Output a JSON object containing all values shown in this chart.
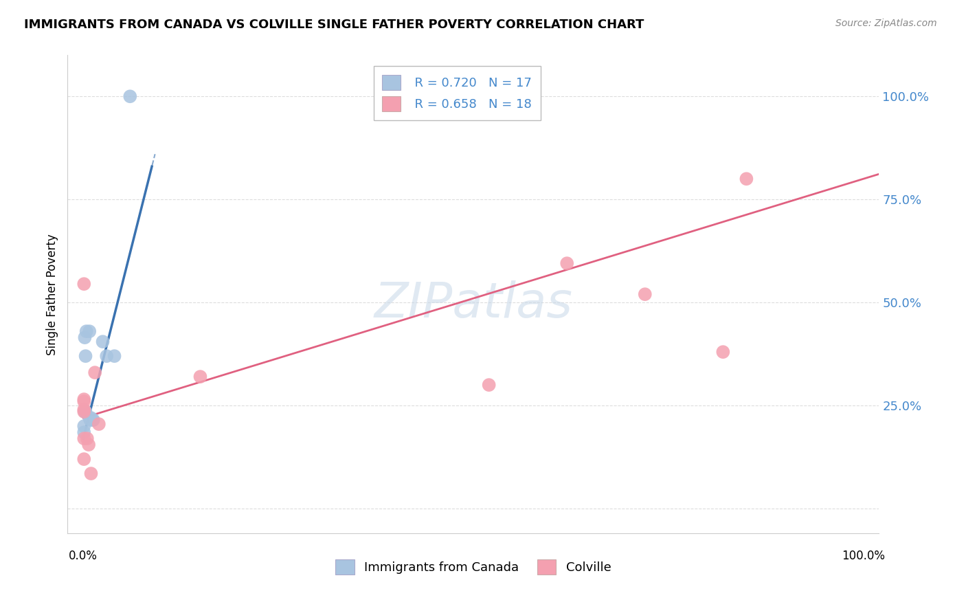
{
  "title": "IMMIGRANTS FROM CANADA VS COLVILLE SINGLE FATHER POVERTY CORRELATION CHART",
  "source": "Source: ZipAtlas.com",
  "ylabel": "Single Father Poverty",
  "legend_label1": "Immigrants from Canada",
  "legend_label2": "Colville",
  "legend_r1": "R = 0.720",
  "legend_n1": "N = 17",
  "legend_r2": "R = 0.658",
  "legend_n2": "N = 18",
  "watermark": "ZIPatlas",
  "blue_color": "#a8c4e0",
  "blue_line_color": "#3a72b0",
  "pink_color": "#f4a0b0",
  "pink_line_color": "#e06080",
  "blue_scatter": [
    [
      0.001,
      0.2
    ],
    [
      0.001,
      0.185
    ],
    [
      0.002,
      0.415
    ],
    [
      0.002,
      0.235
    ],
    [
      0.003,
      0.235
    ],
    [
      0.003,
      0.37
    ],
    [
      0.004,
      0.43
    ],
    [
      0.008,
      0.43
    ],
    [
      0.008,
      0.22
    ],
    [
      0.009,
      0.215
    ],
    [
      0.01,
      0.22
    ],
    [
      0.012,
      0.215
    ],
    [
      0.013,
      0.215
    ],
    [
      0.025,
      0.405
    ],
    [
      0.03,
      0.37
    ],
    [
      0.04,
      0.37
    ],
    [
      0.06,
      1.0
    ]
  ],
  "pink_scatter": [
    [
      0.001,
      0.545
    ],
    [
      0.001,
      0.265
    ],
    [
      0.001,
      0.26
    ],
    [
      0.001,
      0.24
    ],
    [
      0.001,
      0.235
    ],
    [
      0.001,
      0.17
    ],
    [
      0.001,
      0.12
    ],
    [
      0.005,
      0.17
    ],
    [
      0.007,
      0.155
    ],
    [
      0.01,
      0.085
    ],
    [
      0.015,
      0.33
    ],
    [
      0.02,
      0.205
    ],
    [
      0.15,
      0.32
    ],
    [
      0.52,
      0.3
    ],
    [
      0.62,
      0.595
    ],
    [
      0.72,
      0.52
    ],
    [
      0.82,
      0.38
    ],
    [
      0.85,
      0.8
    ]
  ],
  "xlim": [
    -0.02,
    1.02
  ],
  "ylim": [
    -0.06,
    1.1
  ],
  "yticks": [
    0.0,
    0.25,
    0.5,
    0.75,
    1.0
  ],
  "ytick_labels": [
    "",
    "25.0%",
    "50.0%",
    "75.0%",
    "100.0%"
  ],
  "blue_trend_slope": 7.5,
  "blue_trend_intercept": 0.17,
  "pink_trend_slope": 0.58,
  "pink_trend_intercept": 0.22
}
